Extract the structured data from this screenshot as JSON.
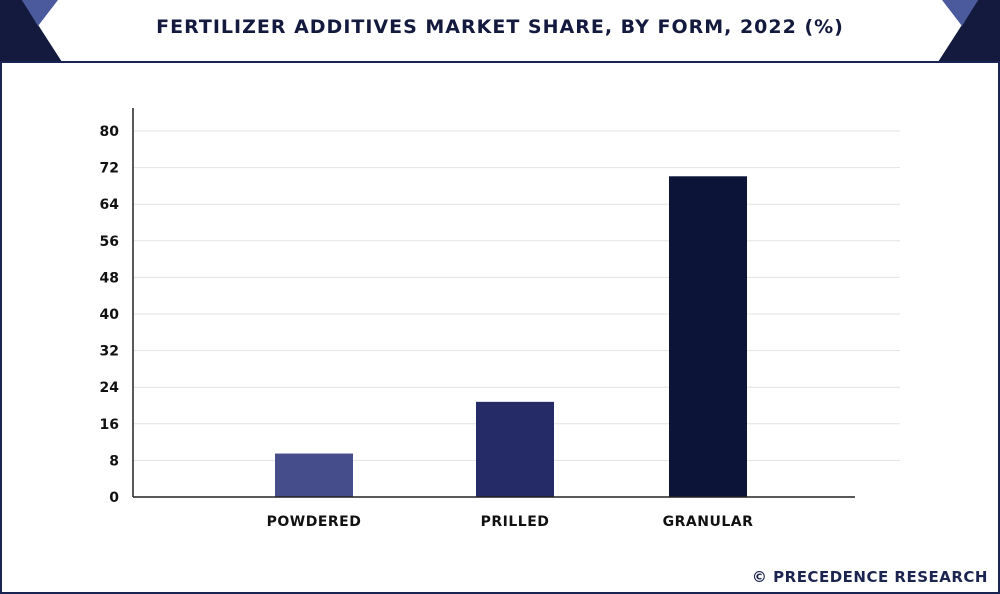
{
  "title": "FERTILIZER ADDITIVES MARKET SHARE, BY FORM, 2022 (%)",
  "watermark": "© PRECEDENCE RESEARCH",
  "colors": {
    "frame": "#1a2452",
    "corner_dark": "#131a3e",
    "corner_light": "#4a5a9c",
    "gridline": "#e3e3e3",
    "axis": "#222222"
  },
  "chart_data": {
    "type": "bar",
    "categories": [
      "POWDERED",
      "PRILLED",
      "GRANULAR"
    ],
    "values": [
      9.5,
      20.8,
      70.1
    ],
    "bar_colors": [
      "#454d8a",
      "#242b66",
      "#0c1437"
    ],
    "yticks": [
      0,
      8,
      16,
      24,
      32,
      40,
      48,
      56,
      64,
      72,
      80
    ],
    "ylim": [
      0,
      80
    ],
    "grid": true,
    "legend": "none"
  }
}
